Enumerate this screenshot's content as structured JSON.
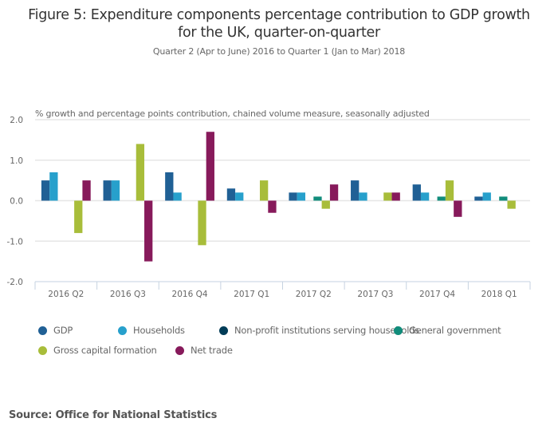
{
  "chart_data": {
    "type": "bar",
    "title": "Figure 5: Expenditure components percentage contribution to GDP growth for the UK, quarter-on-quarter",
    "title_line1": "Figure 5: Expenditure components percentage contribution to GDP growth",
    "title_line2": "for the UK, quarter-on-quarter",
    "subtitle": "Quarter 2 (Apr to June) 2016 to Quarter 1 (Jan to Mar) 2018",
    "ylabel": "% growth and percentage points contribution, chained volume measure, seasonally adjusted",
    "xlabel": "",
    "ylim": [
      -2.0,
      2.0
    ],
    "yticks": [
      "2.0",
      "1.0",
      "0.0",
      "-1.0",
      "-2.0"
    ],
    "ytick_values": [
      2.0,
      1.0,
      0.0,
      -1.0,
      -2.0
    ],
    "grid": true,
    "legend_position": "bottom",
    "categories": [
      "2016 Q2",
      "2016 Q3",
      "2016 Q4",
      "2017 Q1",
      "2017 Q2",
      "2017 Q3",
      "2017 Q4",
      "2018 Q1"
    ],
    "series": [
      {
        "name": "GDP",
        "color": "#206095",
        "values": [
          0.5,
          0.5,
          0.7,
          0.3,
          0.2,
          0.5,
          0.4,
          0.1
        ]
      },
      {
        "name": "Households",
        "color": "#27a0cc",
        "values": [
          0.7,
          0.5,
          0.2,
          0.2,
          0.2,
          0.2,
          0.2,
          0.2
        ]
      },
      {
        "name": "Non-profit institutions serving households",
        "color": "#003c57",
        "values": [
          0.0,
          0.0,
          0.0,
          0.0,
          0.0,
          0.0,
          0.0,
          0.0
        ]
      },
      {
        "name": "General government",
        "color": "#118c7b",
        "values": [
          0.0,
          0.0,
          0.0,
          0.0,
          0.1,
          0.0,
          0.1,
          0.1
        ]
      },
      {
        "name": "Gross capital formation",
        "color": "#a8bd3a",
        "values": [
          -0.8,
          1.4,
          -1.1,
          0.5,
          -0.2,
          0.2,
          0.5,
          -0.2
        ]
      },
      {
        "name": "Net trade",
        "color": "#871a5b",
        "values": [
          0.5,
          -1.5,
          1.7,
          -0.3,
          0.4,
          0.2,
          -0.4,
          0.0
        ]
      }
    ],
    "source": "Source: Office for National Statistics"
  }
}
